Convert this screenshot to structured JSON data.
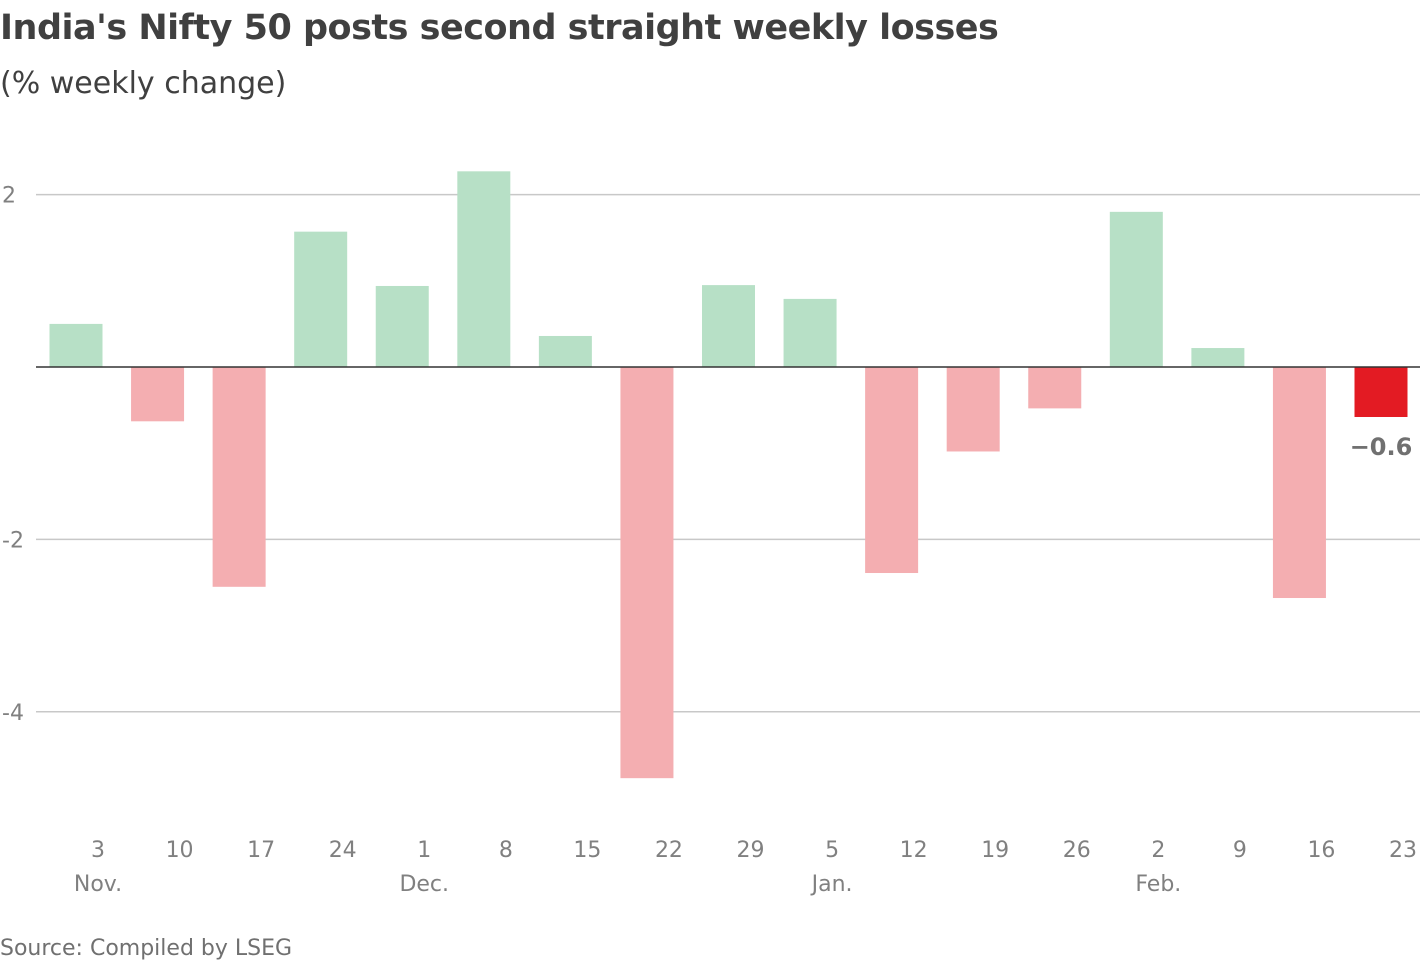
{
  "chart_data": {
    "type": "bar",
    "title": "India's Nifty 50 posts second straight weekly losses",
    "subtitle": "(% weekly change)",
    "source": "Source: Compiled by LSEG",
    "xlabel": "",
    "ylabel": "% weekly change",
    "ylim": [
      -5.1,
      2.7
    ],
    "yticks": [
      2,
      -2,
      -4
    ],
    "ytick_labels": [
      "2",
      "-2",
      "-4"
    ],
    "categories": [
      "3",
      "10",
      "17",
      "24",
      "1",
      "8",
      "15",
      "22",
      "29",
      "5",
      "12",
      "19",
      "26",
      "2",
      "9",
      "16",
      "23"
    ],
    "month_labels": [
      {
        "label": "Nov.",
        "index": 0
      },
      {
        "label": "Dec.",
        "index": 4
      },
      {
        "label": "Jan.",
        "index": 9
      },
      {
        "label": "Feb.",
        "index": 13
      }
    ],
    "values": [
      0.5,
      -0.63,
      -2.55,
      1.57,
      0.94,
      2.27,
      0.36,
      -4.77,
      0.95,
      0.79,
      -2.39,
      -0.98,
      -0.48,
      1.8,
      0.22,
      -2.68,
      -0.58
    ],
    "highlight_index": 16,
    "highlight_label": "−0.6",
    "colors": {
      "positive": "#b7e0c6",
      "negative": "#f4aeb1",
      "highlight": "#e31b23",
      "zero_line": "#333333",
      "grid": "#c8c8c8"
    },
    "grid": true
  }
}
